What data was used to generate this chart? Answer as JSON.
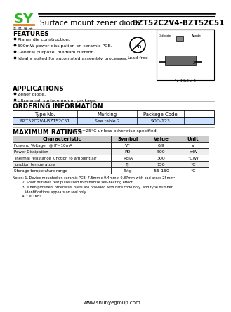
{
  "title_product": "Surface mount zener diode",
  "title_part": "BZT52C2V4-BZT52C51",
  "company_url": "www.shunyegroup.com",
  "features_title": "FEATURES",
  "features": [
    "Planar die construction.",
    "500mW power dissipation on ceramic PCB.",
    "General purpose, medium current.",
    "Ideally suited for automated assembly processes."
  ],
  "applications_title": "APPLICATIONS",
  "applications": [
    "Zener diode.",
    "Ultra-small surface mount package."
  ],
  "ordering_title": "ORDERING INFORMATION",
  "ordering_headers": [
    "Type No.",
    "Marking",
    "Package Code"
  ],
  "ordering_row": [
    "BZT52C2V4-BZT52C51",
    "See table 2",
    "SOD-123"
  ],
  "package_name": "SOD-123",
  "ratings_title": "MAXIMUM RATINGS",
  "ratings_subtitle": " @ Ta=25°C unless otherwise specified",
  "ratings_headers": [
    "Characteristic",
    "Symbol",
    "Value",
    "Unit"
  ],
  "ratings_rows": [
    [
      "Forward Voltage   @ IF=10mA",
      "VF",
      "0.9",
      "V"
    ],
    [
      "Power Dissipation",
      "PD",
      "500",
      "mW"
    ],
    [
      "Thermal resistance junction to ambient air",
      "RθJA",
      "300",
      "°C/W"
    ],
    [
      "Junction temperature",
      "TJ",
      "150",
      "°C"
    ],
    [
      "Storage temperature range",
      "Tstg",
      "-55-150",
      "°C"
    ]
  ],
  "notes_line1": "Notes: 1. Device mounted on ceramic PCB, 7.5mm x 9.4mm x 0.87mm with pad areas 25mm²",
  "notes_line2": "         2. Short duration test pulse used to minimize self-heating effect.",
  "notes_line3": "         3. When provided, otherwise, parts are provided with date code only, and type number",
  "notes_line4": "            identifications appears on reel only.",
  "notes_line5": "         4. f = 1KHz",
  "bg_color": "#ffffff",
  "logo_green": "#2db524",
  "logo_orange": "#e07820"
}
